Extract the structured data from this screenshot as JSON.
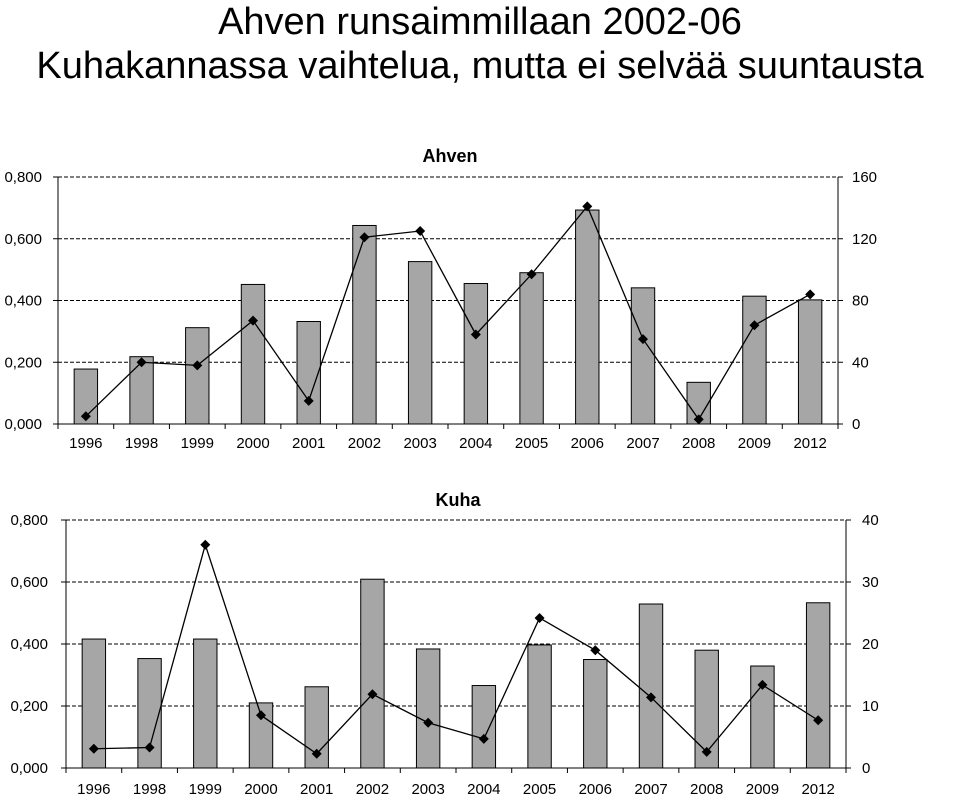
{
  "page": {
    "title_line1": "Ahven runsaimmillaan 2002-06",
    "title_line2": "Kuhakannassa vaihtelua, mutta ei selvää suuntausta"
  },
  "colors": {
    "bar_fill": "#a6a6a6",
    "bar_stroke": "#000000",
    "line": "#000000",
    "grid": "#000000"
  },
  "chart_data": [
    {
      "type": "bar",
      "title": "Ahven",
      "categories": [
        "1996",
        "1998",
        "1999",
        "2000",
        "2001",
        "2002",
        "2003",
        "2004",
        "2005",
        "2006",
        "2007",
        "2008",
        "2009",
        "2012"
      ],
      "left_axis": {
        "ylim": [
          0,
          0.8
        ],
        "ticks": [
          "0,000",
          "0,200",
          "0,400",
          "0,600",
          "0,800"
        ]
      },
      "right_axis": {
        "ylim": [
          0,
          160
        ],
        "ticks": [
          "0",
          "40",
          "80",
          "120",
          "160"
        ]
      },
      "series": [
        {
          "type": "bar",
          "axis": "left",
          "values": [
            0.178,
            0.218,
            0.312,
            0.452,
            0.332,
            0.643,
            0.526,
            0.455,
            0.49,
            0.693,
            0.441,
            0.135,
            0.414,
            0.402
          ]
        },
        {
          "type": "line",
          "axis": "right",
          "marker": "diamond",
          "values": [
            5,
            40,
            38,
            67,
            15,
            121,
            125,
            58,
            97,
            141,
            55,
            3,
            64,
            84
          ]
        }
      ],
      "grid": "dashed horizontal",
      "legend": "none"
    },
    {
      "type": "bar",
      "title": "Kuha",
      "categories": [
        "1996",
        "1998",
        "1999",
        "2000",
        "2001",
        "2002",
        "2003",
        "2004",
        "2005",
        "2006",
        "2007",
        "2008",
        "2009",
        "2012"
      ],
      "left_axis": {
        "ylim": [
          0,
          0.8
        ],
        "ticks": [
          "0,000",
          "0,200",
          "0,400",
          "0,600",
          "0,800"
        ]
      },
      "right_axis": {
        "ylim": [
          0,
          40
        ],
        "ticks": [
          "0",
          "10",
          "20",
          "30",
          "40"
        ]
      },
      "series": [
        {
          "type": "bar",
          "axis": "left",
          "values": [
            0.416,
            0.353,
            0.416,
            0.21,
            0.262,
            0.609,
            0.384,
            0.266,
            0.397,
            0.35,
            0.529,
            0.38,
            0.329,
            0.533
          ]
        },
        {
          "type": "line",
          "axis": "right",
          "marker": "diamond",
          "values": [
            3.1,
            3.3,
            36.0,
            8.5,
            2.3,
            11.9,
            7.3,
            4.7,
            24.2,
            19.0,
            11.4,
            2.6,
            13.4,
            7.7
          ]
        }
      ],
      "grid": "dashed horizontal",
      "legend": "none"
    }
  ]
}
